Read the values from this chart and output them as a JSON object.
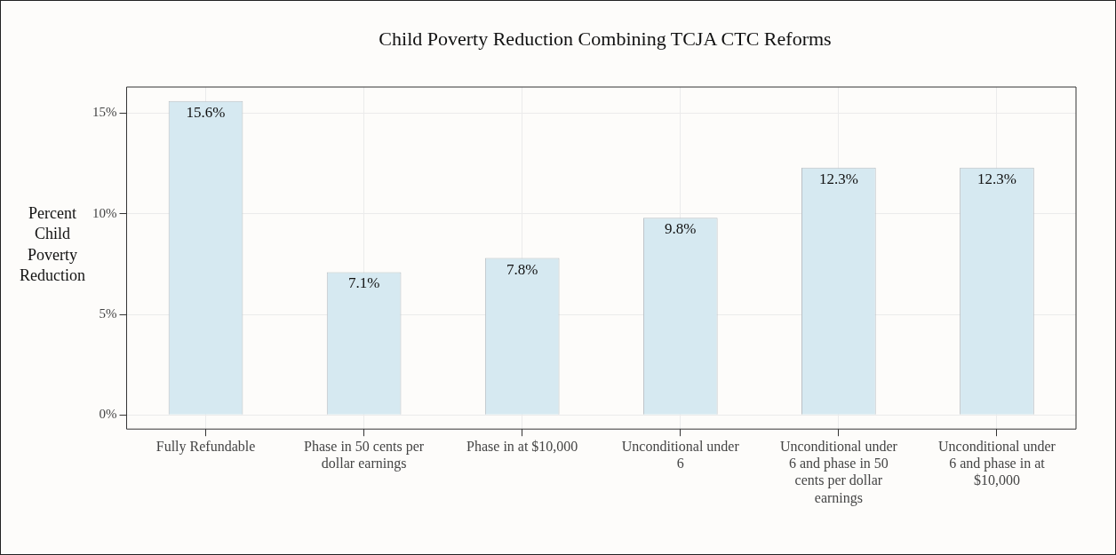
{
  "chart_data": {
    "type": "bar",
    "title": "Child Poverty Reduction Combining TCJA CTC Reforms",
    "ylabel": "Percent Child Poverty Reduction",
    "categories": [
      "Fully Refundable",
      "Phase in 50 cents per dollar earnings",
      "Phase in at $10,000",
      "Unconditional under 6",
      "Unconditional under 6 and phase in 50 cents per dollar earnings",
      "Unconditional under 6 and phase in at $10,000"
    ],
    "values": [
      15.6,
      7.1,
      7.8,
      9.8,
      12.3,
      12.3
    ],
    "value_labels": [
      "15.6%",
      "7.1%",
      "7.8%",
      "9.8%",
      "12.3%",
      "12.3%"
    ],
    "color": "#d6e9f1",
    "ylim": [
      -0.7,
      16.3
    ],
    "yticks": [
      {
        "value": 0,
        "label": "0%"
      },
      {
        "value": 5,
        "label": "5%"
      },
      {
        "value": 10,
        "label": "10%"
      },
      {
        "value": 15,
        "label": "15%"
      }
    ],
    "grid": true
  }
}
